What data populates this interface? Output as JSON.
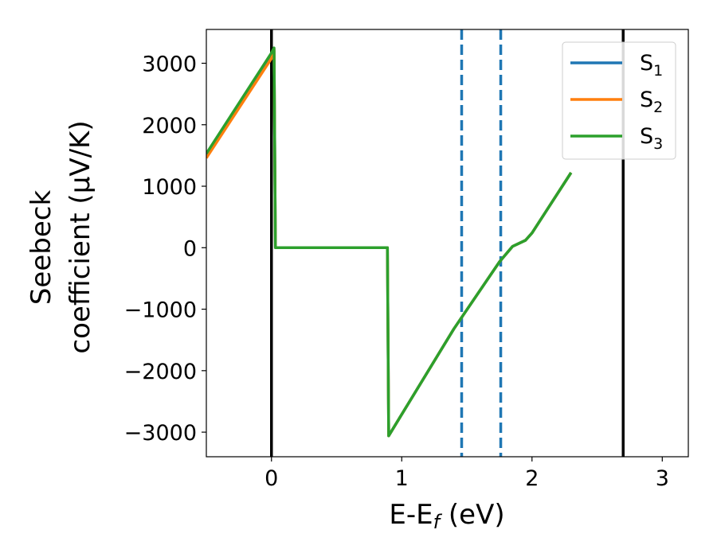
{
  "chart_data": {
    "type": "line",
    "xlabel": "E-E",
    "xlabel_sub": "f",
    "xlabel_unit": " (eV)",
    "ylabel_line1": "Seebeck",
    "ylabel_line2": "coefficient  (μV/K)",
    "xlim": [
      -0.5,
      3.2
    ],
    "ylim": [
      -3400,
      3550
    ],
    "xticks": [
      0,
      1,
      2,
      3
    ],
    "xtick_labels": [
      "0",
      "1",
      "2",
      "3"
    ],
    "yticks": [
      3000,
      2000,
      1000,
      0,
      -1000,
      -2000,
      -3000
    ],
    "ytick_labels": [
      "3000",
      "2000",
      "1000",
      "0",
      "−1000",
      "−2000",
      "−3000"
    ],
    "legend_position": "top-right",
    "series": [
      {
        "name": "S",
        "sub": "1",
        "color": "#1f77b4",
        "x": [
          -0.5,
          0.0,
          0.02,
          0.03,
          0.89,
          0.9,
          1.4,
          1.75,
          1.85,
          1.95,
          2.0,
          2.3
        ],
        "y": [
          1480,
          3120,
          3200,
          0,
          0,
          -3060,
          -1320,
          -230,
          20,
          120,
          240,
          1220
        ]
      },
      {
        "name": "S",
        "sub": "2",
        "color": "#ff7f0e",
        "x": [
          -0.5,
          0.0,
          0.02,
          0.03,
          0.89,
          0.9,
          1.4,
          1.75,
          1.85,
          1.95,
          2.0,
          2.3
        ],
        "y": [
          1460,
          3080,
          3230,
          0,
          0,
          -3060,
          -1320,
          -230,
          20,
          120,
          240,
          1220
        ]
      },
      {
        "name": "S",
        "sub": "3",
        "color": "#2ca02c",
        "x": [
          -0.5,
          0.0,
          0.02,
          0.03,
          0.89,
          0.9,
          1.4,
          1.75,
          1.85,
          1.95,
          2.0,
          2.3
        ],
        "y": [
          1530,
          3170,
          3250,
          0,
          0,
          -3060,
          -1320,
          -230,
          20,
          120,
          240,
          1220
        ]
      }
    ],
    "vlines": [
      {
        "x": 0.0,
        "color": "#000000",
        "style": "solid"
      },
      {
        "x": 2.7,
        "color": "#000000",
        "style": "solid"
      },
      {
        "x": 1.46,
        "color": "#1f77b4",
        "style": "dashed"
      },
      {
        "x": 1.76,
        "color": "#1f77b4",
        "style": "dashed"
      }
    ]
  }
}
